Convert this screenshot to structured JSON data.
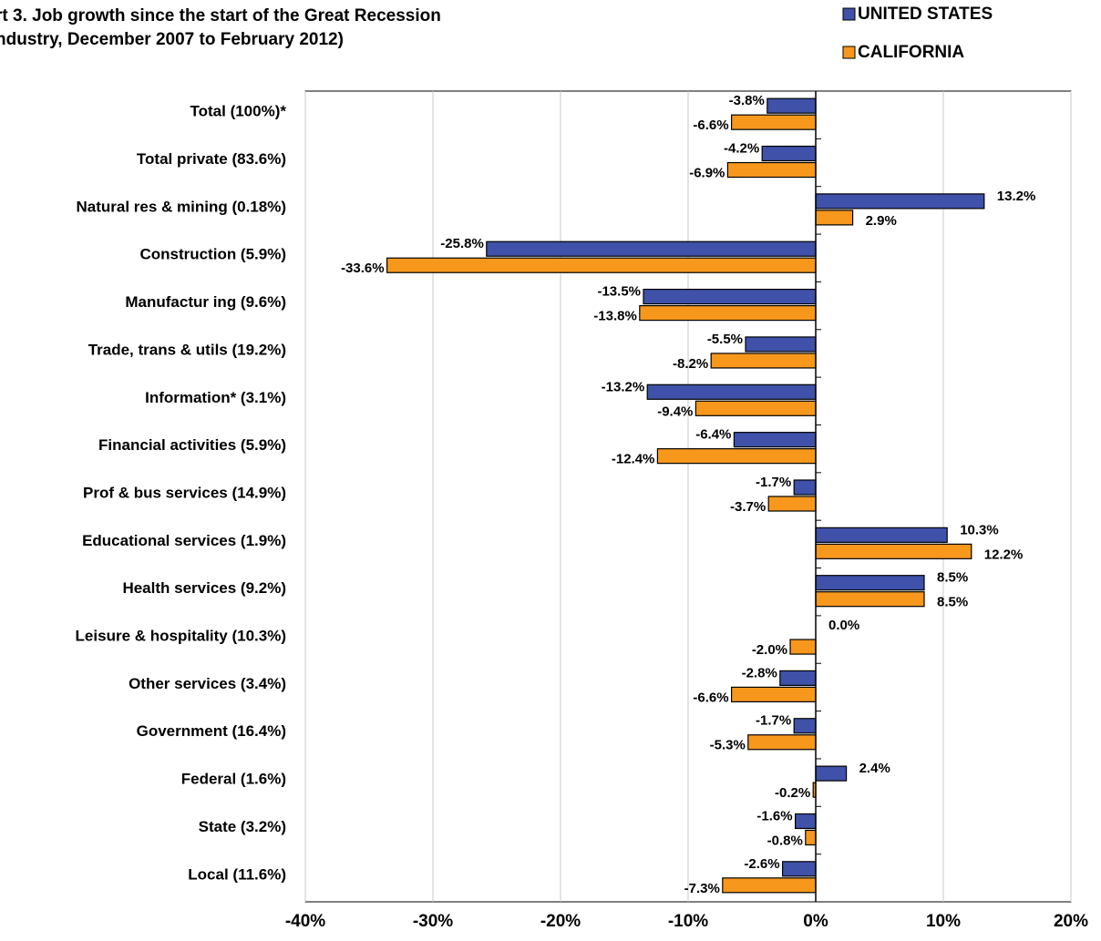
{
  "chart_data": {
    "type": "hbar",
    "title": [
      "rt 3. Job growth since the start of the Great Recession",
      "ndustry, December 2007 to February 2012)"
    ],
    "categories": [
      "Total (100%)*",
      "Total private (83.6%)",
      "Natural res & mining (0.18%)",
      "Construction (5.9%)",
      "Manufactur ing (9.6%)",
      "Trade, trans & utils (19.2%)",
      "Information* (3.1%)",
      "Financial activities (5.9%)",
      "Prof & bus services (14.9%)",
      "Educational services (1.9%)",
      "Health services (9.2%)",
      "Leisure & hospitality (10.3%)",
      "Other services (3.4%)",
      "Government (16.4%)",
      "Federal (1.6%)",
      "State (3.2%)",
      "Local (11.6%)"
    ],
    "series": [
      {
        "name": "UNITED STATES",
        "color": "#3f51a8",
        "values": [
          -3.8,
          -4.2,
          13.2,
          -25.8,
          -13.5,
          -5.5,
          -13.2,
          -6.4,
          -1.7,
          10.3,
          8.5,
          0.0,
          -2.8,
          -1.7,
          2.4,
          -1.6,
          -2.6
        ],
        "value_labels": [
          "-3.8%",
          "-4.2%",
          "13.2%",
          "-25.8%",
          "-13.5%",
          "-5.5%",
          "-13.2%",
          "-6.4%",
          "-1.7%",
          "10.3%",
          "8.5%",
          "0.0%",
          "-2.8%",
          "-1.7%",
          "2.4%",
          "-1.6%",
          "-2.6%"
        ]
      },
      {
        "name": "CALIFORNIA",
        "color": "#f7981d",
        "values": [
          -6.6,
          -6.9,
          2.9,
          -33.6,
          -13.8,
          -8.2,
          -9.4,
          -12.4,
          -3.7,
          12.2,
          8.5,
          -2.0,
          -6.6,
          -5.3,
          -0.2,
          -0.8,
          -7.3
        ],
        "value_labels": [
          "-6.6%",
          "-6.9%",
          "2.9%",
          "-33.6%",
          "-13.8%",
          "-8.2%",
          "-9.4%",
          "-12.4%",
          "-3.7%",
          "12.2%",
          "8.5%",
          "-2.0%",
          "-6.6%",
          "-5.3%",
          "-0.2%",
          "-0.8%",
          "-7.3%"
        ]
      }
    ],
    "xlim": [
      -40,
      20
    ],
    "xticks": [
      {
        "value": -40,
        "label": "-40%"
      },
      {
        "value": -30,
        "label": "-30%"
      },
      {
        "value": -20,
        "label": "-20%"
      },
      {
        "value": -10,
        "label": "-10%"
      },
      {
        "value": 0,
        "label": "0%"
      },
      {
        "value": 10,
        "label": "10%"
      },
      {
        "value": 20,
        "label": "20%"
      }
    ],
    "grid": true,
    "legend": "top-right"
  }
}
